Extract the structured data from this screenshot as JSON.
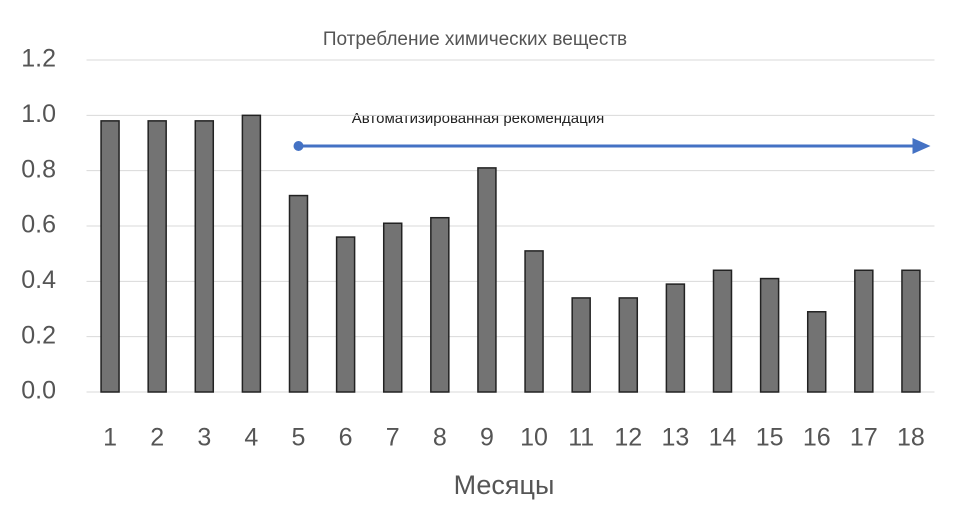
{
  "chart_data": {
    "type": "bar",
    "title": "Потребление химических веществ",
    "annotation": "Автоматизированная рекомендация",
    "xlabel": "Месяцы",
    "categories": [
      "1",
      "2",
      "3",
      "4",
      "5",
      "6",
      "7",
      "8",
      "9",
      "10",
      "11",
      "12",
      "13",
      "14",
      "15",
      "16",
      "17",
      "18"
    ],
    "values": [
      0.98,
      0.98,
      0.98,
      1.0,
      0.71,
      0.56,
      0.61,
      0.63,
      0.81,
      0.51,
      0.34,
      0.34,
      0.39,
      0.44,
      0.41,
      0.29,
      0.44,
      0.44
    ],
    "color": "#737373",
    "annotation_color": "#4472c4",
    "ylim": [
      0,
      1.2
    ],
    "yticks": [
      {
        "value": 0,
        "label": "0.0"
      },
      0.2,
      0.4,
      0.6,
      0.8,
      {
        "value": 1,
        "label": "1.0"
      },
      1.2
    ],
    "grid": true
  }
}
